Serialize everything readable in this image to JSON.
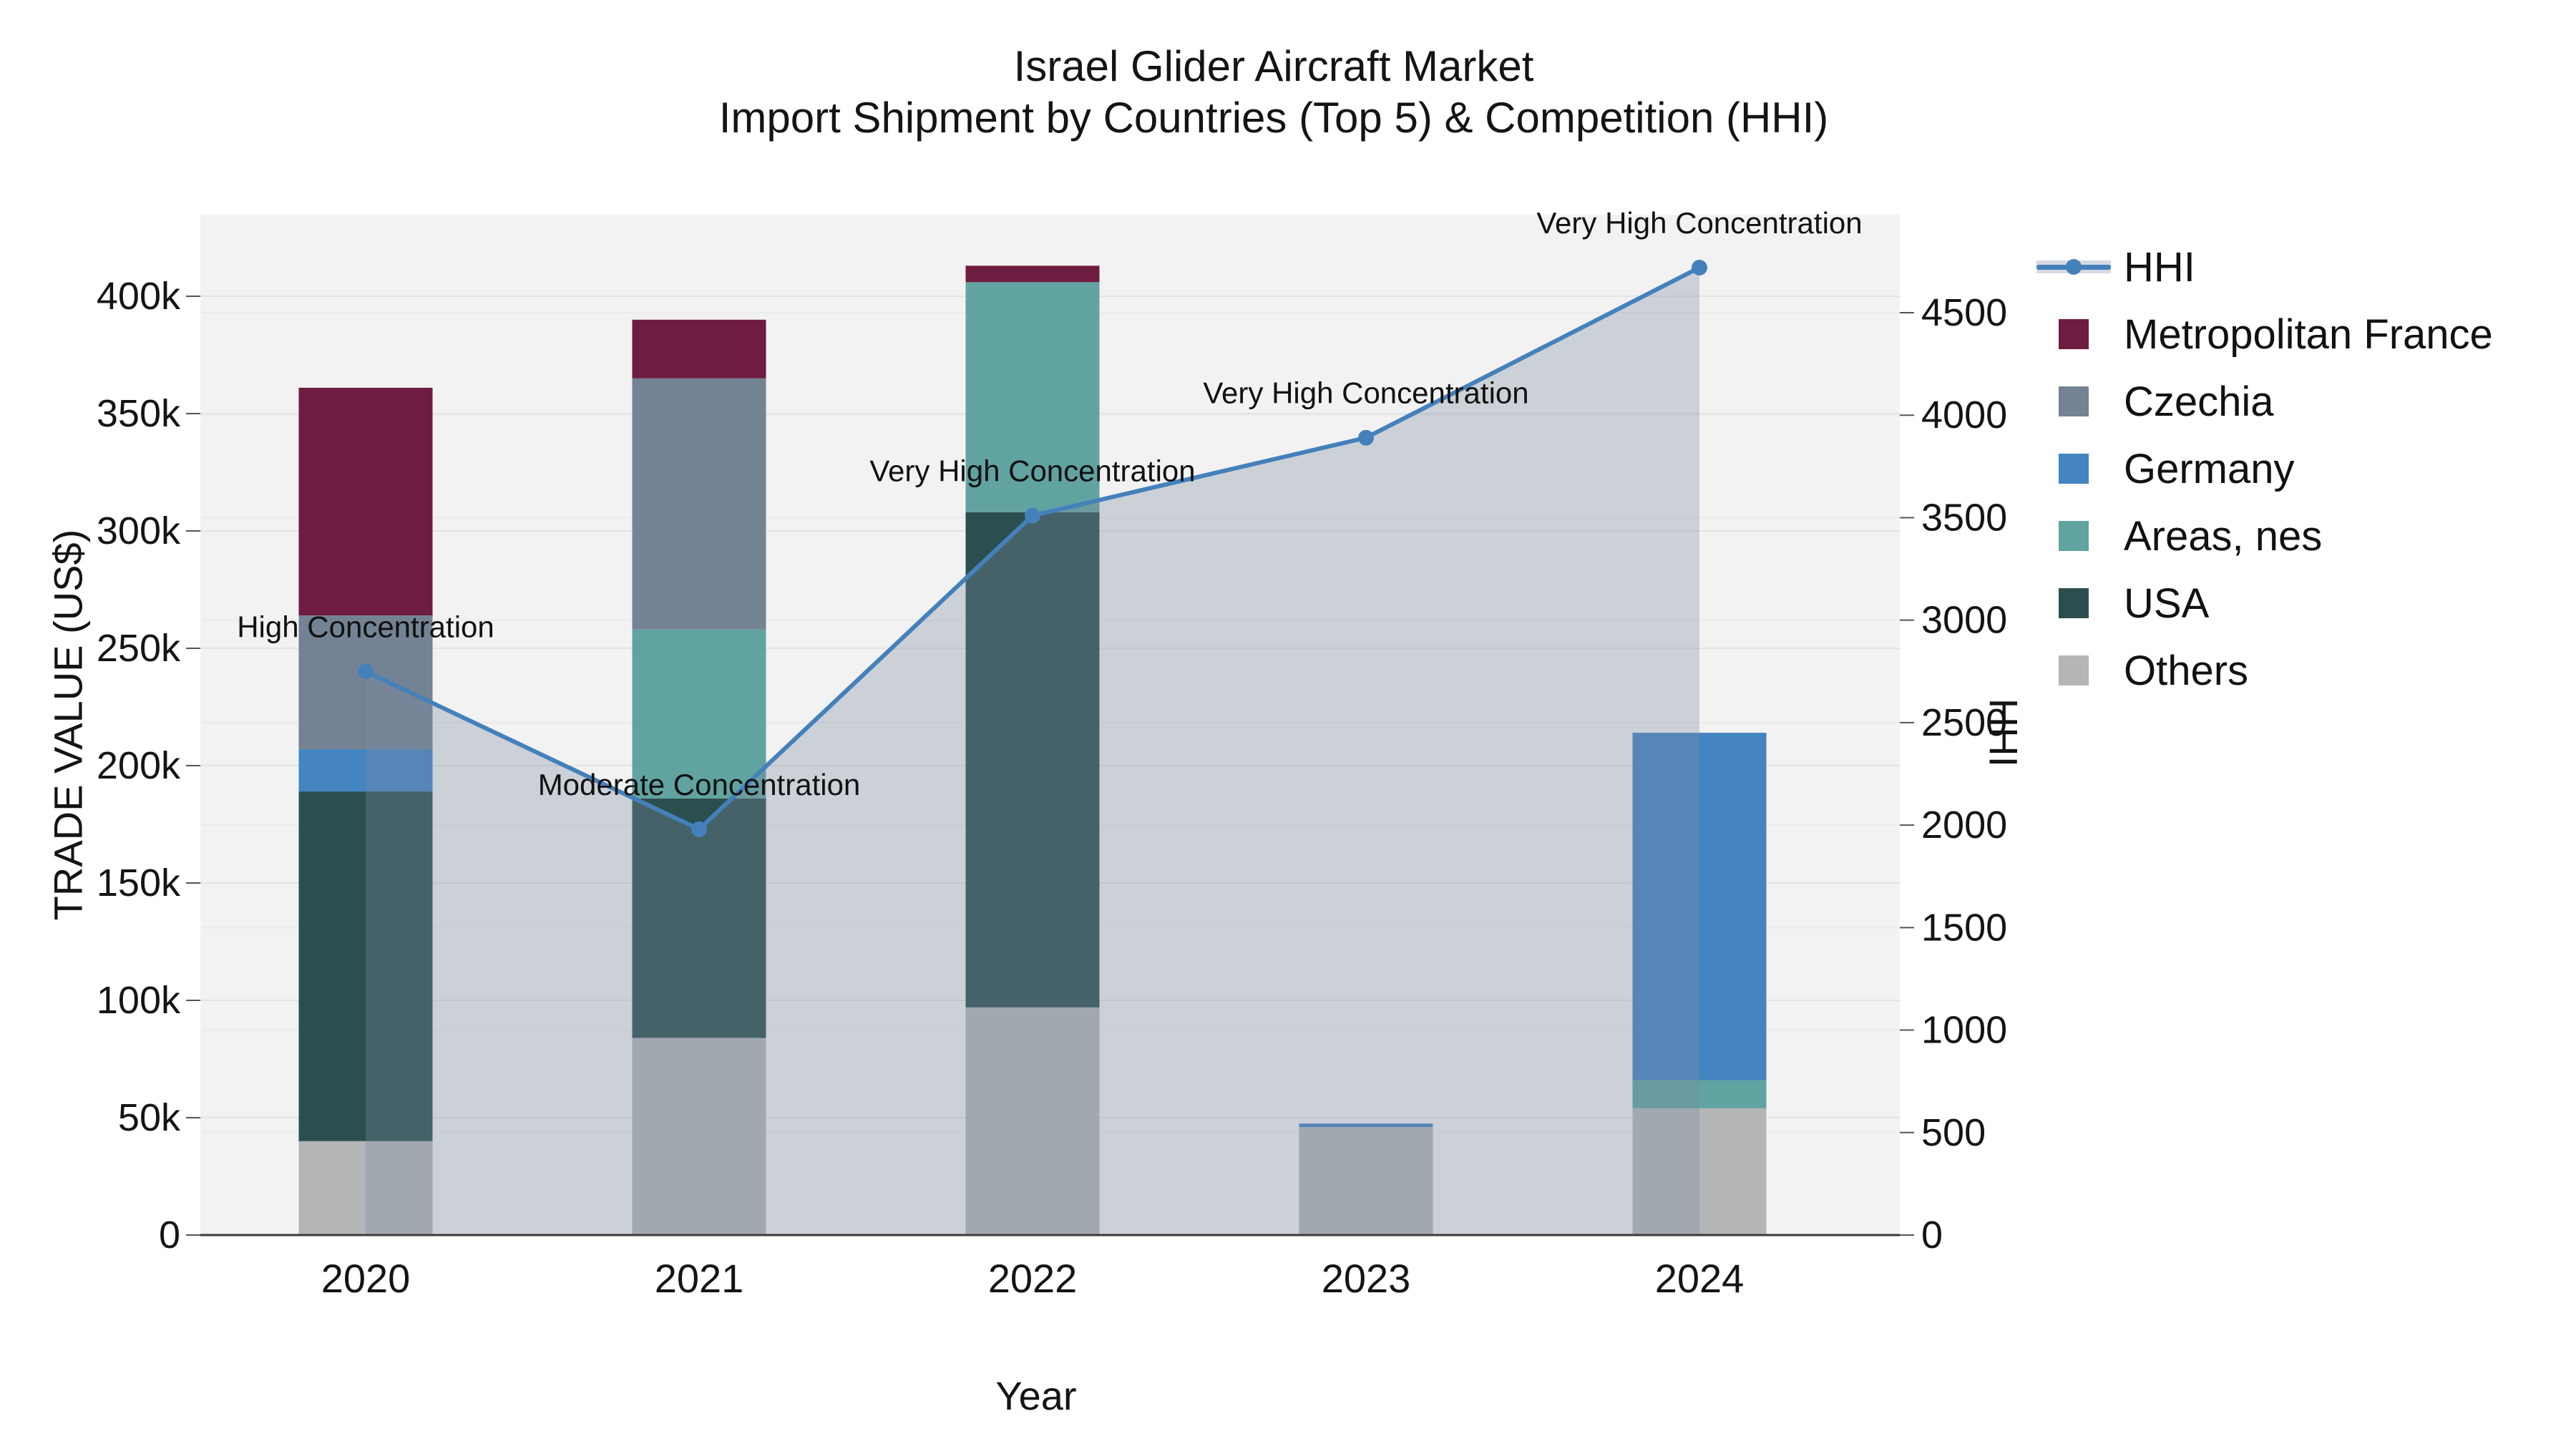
{
  "title": {
    "line1": "Israel Glider Aircraft Market",
    "line2": "Import Shipment by Countries (Top 5) & Competition (HHI)"
  },
  "axes": {
    "x_title": "Year",
    "y_left_title": "TRADE VALUE (US$)",
    "y_right_title": "HHI",
    "y_left_ticks": [
      {
        "value": 0,
        "label": "0"
      },
      {
        "value": 50000,
        "label": "50k"
      },
      {
        "value": 100000,
        "label": "100k"
      },
      {
        "value": 150000,
        "label": "150k"
      },
      {
        "value": 200000,
        "label": "200k"
      },
      {
        "value": 250000,
        "label": "250k"
      },
      {
        "value": 300000,
        "label": "300k"
      },
      {
        "value": 350000,
        "label": "350k"
      },
      {
        "value": 400000,
        "label": "400k"
      }
    ],
    "y_right_ticks": [
      {
        "value": 0,
        "label": "0"
      },
      {
        "value": 500,
        "label": "500"
      },
      {
        "value": 1000,
        "label": "1000"
      },
      {
        "value": 1500,
        "label": "1500"
      },
      {
        "value": 2000,
        "label": "2000"
      },
      {
        "value": 2500,
        "label": "2500"
      },
      {
        "value": 3000,
        "label": "3000"
      },
      {
        "value": 3500,
        "label": "3500"
      },
      {
        "value": 4000,
        "label": "4000"
      },
      {
        "value": 4500,
        "label": "4500"
      }
    ]
  },
  "legend": {
    "items": [
      {
        "label": "HHI",
        "type": "line",
        "color": "#4481bb"
      },
      {
        "label": "Metropolitan France",
        "type": "swatch",
        "color": "#6e1c3f"
      },
      {
        "label": "Czechia",
        "type": "swatch",
        "color": "#738394"
      },
      {
        "label": "Germany",
        "type": "swatch",
        "color": "#4384c1"
      },
      {
        "label": "Areas, nes",
        "type": "swatch",
        "color": "#61a3a1"
      },
      {
        "label": "USA",
        "type": "swatch",
        "color": "#2b4f4e"
      },
      {
        "label": "Others",
        "type": "swatch",
        "color": "#b4b5b7"
      }
    ]
  },
  "chart_data": {
    "type": "bar",
    "subtype": "stacked-bar-with-line",
    "categories": [
      "2020",
      "2021",
      "2022",
      "2023",
      "2024"
    ],
    "xlabel": "Year",
    "ylabel": "TRADE VALUE (US$)",
    "ylabel_right": "HHI",
    "ylim_left": [
      0,
      434000
    ],
    "ylim_right": [
      0,
      4980
    ],
    "grid": true,
    "legend_position": "right",
    "bar_stack_order_bottom_to_top": [
      "Others",
      "USA",
      "Areas, nes",
      "Germany",
      "Czechia",
      "Metropolitan France"
    ],
    "series": [
      {
        "name": "Others",
        "color": "#b4b5b7",
        "values": [
          40000,
          84000,
          97000,
          46000,
          54000
        ]
      },
      {
        "name": "USA",
        "color": "#2b4f4e",
        "values": [
          149000,
          102000,
          211000,
          0,
          0
        ]
      },
      {
        "name": "Areas, nes",
        "color": "#61a3a1",
        "values": [
          0,
          72000,
          98000,
          0,
          12000
        ]
      },
      {
        "name": "Germany",
        "color": "#4384c1",
        "values": [
          18000,
          0,
          0,
          1500,
          148000
        ]
      },
      {
        "name": "Czechia",
        "color": "#738394",
        "values": [
          57000,
          107000,
          0,
          0,
          0
        ]
      },
      {
        "name": "Metropolitan France",
        "color": "#6e1c3f",
        "values": [
          97000,
          25000,
          7000,
          0,
          0
        ]
      }
    ],
    "bar_totals": [
      361000,
      390000,
      413000,
      47500,
      214000
    ],
    "line_series": {
      "name": "HHI",
      "axis": "right",
      "color": "#4481bb",
      "area_fill": "rgba(123,139,161,0.32)",
      "values": [
        2750,
        1980,
        3510,
        3890,
        4720
      ],
      "annotations": [
        "High Concentration",
        "Moderate Concentration",
        "Very High Concentration",
        "Very High Concentration",
        "Very High Concentration"
      ]
    },
    "colors": {
      "plot_background": "#f2f2f2",
      "grid_left": "#e4e4e4",
      "grid_right": "#ebebeb",
      "axis_line": "#3b3b3b",
      "text": "#141414"
    }
  }
}
